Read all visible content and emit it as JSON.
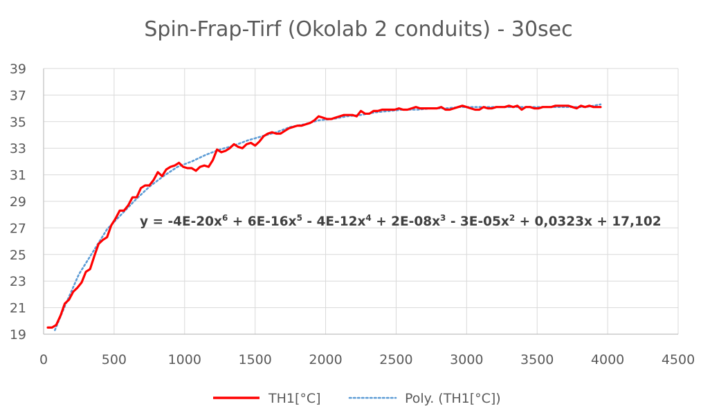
{
  "chart_data": {
    "type": "line",
    "title": "Spin-Frap-Tirf (Okolab 2 conduits) - 30sec",
    "xlabel": "",
    "ylabel": "",
    "xlim": [
      0,
      4500
    ],
    "ylim": [
      19,
      39
    ],
    "x_ticks": [
      "0",
      "500",
      "1000",
      "1500",
      "2000",
      "2500",
      "3000",
      "3500",
      "4000",
      "4500"
    ],
    "y_ticks": [
      "19",
      "21",
      "23",
      "25",
      "27",
      "29",
      "31",
      "33",
      "35",
      "37",
      "39"
    ],
    "grid": "horizontal",
    "legend_position": "bottom",
    "series": [
      {
        "name": "TH1[°C]",
        "color": "#ff0000",
        "style": "solid",
        "points": [
          [
            30,
            19.5
          ],
          [
            60,
            19.5
          ],
          [
            90,
            19.7
          ],
          [
            120,
            20.4
          ],
          [
            150,
            21.3
          ],
          [
            180,
            21.6
          ],
          [
            210,
            22.2
          ],
          [
            240,
            22.5
          ],
          [
            270,
            22.9
          ],
          [
            300,
            23.7
          ],
          [
            330,
            23.9
          ],
          [
            360,
            24.9
          ],
          [
            390,
            25.8
          ],
          [
            420,
            26.1
          ],
          [
            450,
            26.3
          ],
          [
            480,
            27.2
          ],
          [
            510,
            27.7
          ],
          [
            540,
            28.3
          ],
          [
            570,
            28.3
          ],
          [
            600,
            28.7
          ],
          [
            630,
            29.3
          ],
          [
            660,
            29.3
          ],
          [
            690,
            30.0
          ],
          [
            720,
            30.2
          ],
          [
            750,
            30.2
          ],
          [
            780,
            30.6
          ],
          [
            810,
            31.2
          ],
          [
            840,
            30.9
          ],
          [
            870,
            31.4
          ],
          [
            900,
            31.6
          ],
          [
            930,
            31.7
          ],
          [
            960,
            31.9
          ],
          [
            990,
            31.6
          ],
          [
            1020,
            31.5
          ],
          [
            1050,
            31.5
          ],
          [
            1080,
            31.3
          ],
          [
            1110,
            31.6
          ],
          [
            1140,
            31.7
          ],
          [
            1170,
            31.6
          ],
          [
            1200,
            32.1
          ],
          [
            1230,
            32.9
          ],
          [
            1260,
            32.7
          ],
          [
            1290,
            32.8
          ],
          [
            1320,
            33.0
          ],
          [
            1350,
            33.3
          ],
          [
            1380,
            33.1
          ],
          [
            1410,
            33.0
          ],
          [
            1440,
            33.3
          ],
          [
            1470,
            33.4
          ],
          [
            1500,
            33.2
          ],
          [
            1530,
            33.5
          ],
          [
            1560,
            33.9
          ],
          [
            1590,
            34.1
          ],
          [
            1620,
            34.2
          ],
          [
            1650,
            34.1
          ],
          [
            1680,
            34.1
          ],
          [
            1710,
            34.3
          ],
          [
            1740,
            34.5
          ],
          [
            1770,
            34.6
          ],
          [
            1800,
            34.7
          ],
          [
            1830,
            34.7
          ],
          [
            1860,
            34.8
          ],
          [
            1890,
            34.9
          ],
          [
            1920,
            35.1
          ],
          [
            1950,
            35.4
          ],
          [
            1980,
            35.3
          ],
          [
            2010,
            35.2
          ],
          [
            2040,
            35.2
          ],
          [
            2070,
            35.3
          ],
          [
            2100,
            35.4
          ],
          [
            2130,
            35.5
          ],
          [
            2160,
            35.5
          ],
          [
            2190,
            35.5
          ],
          [
            2220,
            35.4
          ],
          [
            2250,
            35.8
          ],
          [
            2280,
            35.6
          ],
          [
            2310,
            35.6
          ],
          [
            2340,
            35.8
          ],
          [
            2370,
            35.8
          ],
          [
            2400,
            35.9
          ],
          [
            2430,
            35.9
          ],
          [
            2460,
            35.9
          ],
          [
            2490,
            35.9
          ],
          [
            2520,
            36.0
          ],
          [
            2550,
            35.9
          ],
          [
            2580,
            35.9
          ],
          [
            2610,
            36.0
          ],
          [
            2640,
            36.1
          ],
          [
            2670,
            36.0
          ],
          [
            2700,
            36.0
          ],
          [
            2730,
            36.0
          ],
          [
            2760,
            36.0
          ],
          [
            2790,
            36.0
          ],
          [
            2820,
            36.1
          ],
          [
            2850,
            35.9
          ],
          [
            2880,
            35.9
          ],
          [
            2910,
            36.0
          ],
          [
            2940,
            36.1
          ],
          [
            2970,
            36.2
          ],
          [
            3000,
            36.1
          ],
          [
            3030,
            36.0
          ],
          [
            3060,
            35.9
          ],
          [
            3090,
            35.9
          ],
          [
            3120,
            36.1
          ],
          [
            3150,
            36.0
          ],
          [
            3180,
            36.0
          ],
          [
            3210,
            36.1
          ],
          [
            3240,
            36.1
          ],
          [
            3270,
            36.1
          ],
          [
            3300,
            36.2
          ],
          [
            3330,
            36.1
          ],
          [
            3360,
            36.2
          ],
          [
            3390,
            35.9
          ],
          [
            3420,
            36.1
          ],
          [
            3450,
            36.1
          ],
          [
            3480,
            36.0
          ],
          [
            3510,
            36.0
          ],
          [
            3540,
            36.1
          ],
          [
            3570,
            36.1
          ],
          [
            3600,
            36.1
          ],
          [
            3630,
            36.2
          ],
          [
            3660,
            36.2
          ],
          [
            3690,
            36.2
          ],
          [
            3720,
            36.2
          ],
          [
            3750,
            36.1
          ],
          [
            3780,
            36.0
          ],
          [
            3810,
            36.2
          ],
          [
            3840,
            36.1
          ],
          [
            3870,
            36.2
          ],
          [
            3900,
            36.1
          ],
          [
            3930,
            36.1
          ],
          [
            3950,
            36.1
          ]
        ]
      },
      {
        "name": "Poly. (TH1[°C])",
        "color": "#5b9bd5",
        "style": "dotted",
        "points": [
          [
            80,
            19.3
          ],
          [
            150,
            21.1
          ],
          [
            250,
            23.5
          ],
          [
            350,
            25.2
          ],
          [
            450,
            26.9
          ],
          [
            550,
            28.0
          ],
          [
            650,
            29.1
          ],
          [
            750,
            30.1
          ],
          [
            850,
            30.9
          ],
          [
            950,
            31.6
          ],
          [
            1050,
            32.0
          ],
          [
            1150,
            32.5
          ],
          [
            1250,
            32.9
          ],
          [
            1350,
            33.2
          ],
          [
            1450,
            33.6
          ],
          [
            1550,
            33.9
          ],
          [
            1650,
            34.2
          ],
          [
            1750,
            34.6
          ],
          [
            1850,
            34.8
          ],
          [
            1950,
            35.1
          ],
          [
            2050,
            35.2
          ],
          [
            2150,
            35.4
          ],
          [
            2250,
            35.5
          ],
          [
            2350,
            35.7
          ],
          [
            2450,
            35.8
          ],
          [
            2550,
            35.9
          ],
          [
            2650,
            35.9
          ],
          [
            2750,
            36.0
          ],
          [
            2850,
            36.0
          ],
          [
            2950,
            36.1
          ],
          [
            3050,
            36.1
          ],
          [
            3150,
            36.1
          ],
          [
            3250,
            36.1
          ],
          [
            3350,
            36.1
          ],
          [
            3450,
            36.1
          ],
          [
            3550,
            36.1
          ],
          [
            3650,
            36.1
          ],
          [
            3750,
            36.1
          ],
          [
            3850,
            36.1
          ],
          [
            3950,
            36.3
          ]
        ]
      }
    ],
    "annotation": {
      "label": "y = -4E-20x6 + 6E-16x5 - 4E-12x4 + 2E-08x3 - 3E-05x2 + 0,0323x + 17,102",
      "parts": [
        {
          "t": "y = -4E-20x",
          "sup": false
        },
        {
          "t": "6",
          "sup": true
        },
        {
          "t": " + 6E-16x",
          "sup": false
        },
        {
          "t": "5",
          "sup": true
        },
        {
          "t": " - 4E-12x",
          "sup": false
        },
        {
          "t": "4",
          "sup": true
        },
        {
          "t": " + 2E-08x",
          "sup": false
        },
        {
          "t": "3",
          "sup": true
        },
        {
          "t": " - 3E-05x",
          "sup": false
        },
        {
          "t": "2",
          "sup": true
        },
        {
          "t": " + 0,0323x + 17,102",
          "sup": false
        }
      ]
    }
  }
}
